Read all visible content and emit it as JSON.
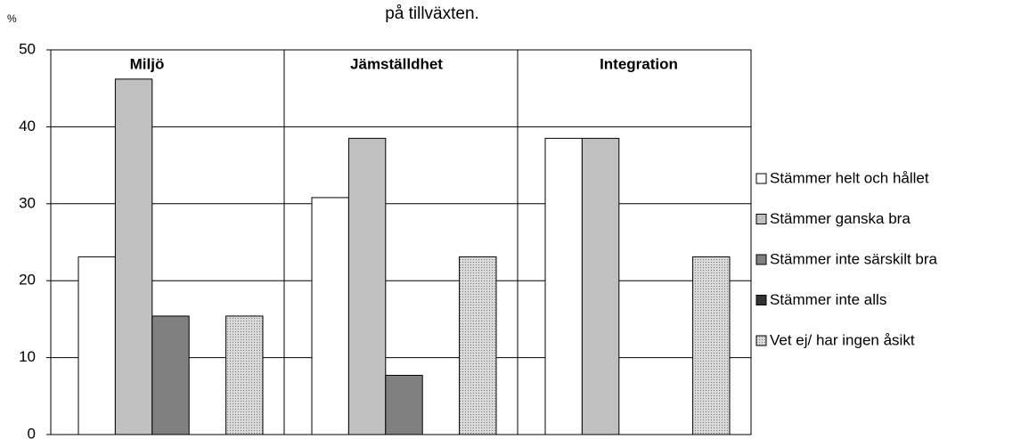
{
  "chart_data": {
    "type": "bar",
    "title": "på tillväxten.",
    "y_label": "%",
    "categories": [
      "Miljö",
      "Jämställdhet",
      "Integration"
    ],
    "series": [
      {
        "name": "Stämmer helt och hållet",
        "color": "#ffffff",
        "values": [
          23.1,
          30.8,
          38.5
        ]
      },
      {
        "name": "Stämmer ganska bra",
        "color": "#c0c0c0",
        "values": [
          46.2,
          38.5,
          38.5
        ]
      },
      {
        "name": "Stämmer inte särskilt bra",
        "color": "#808080",
        "values": [
          15.4,
          7.7,
          0
        ]
      },
      {
        "name": "Stämmer inte alls",
        "color": "#333333",
        "values": [
          0,
          0,
          0
        ]
      },
      {
        "name": "Vet ej/ har ingen åsikt",
        "color": "#d9d9d9",
        "fill_pattern": "dots",
        "values": [
          15.4,
          23.1,
          23.1
        ]
      }
    ],
    "ylim": [
      0,
      50
    ],
    "yticks": [
      0,
      10,
      20,
      30,
      40,
      50
    ],
    "grid": true,
    "legend": "right"
  }
}
